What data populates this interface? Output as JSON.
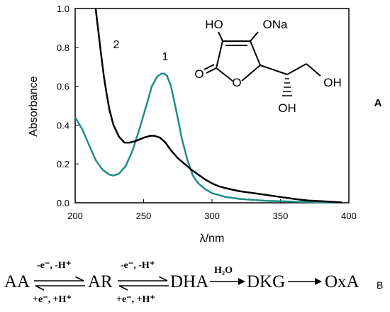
{
  "chart_data": {
    "type": "line",
    "xlabel": "λ/nm",
    "ylabel": "Absorbance",
    "xlim": [
      200,
      400
    ],
    "ylim": [
      0.0,
      1.0
    ],
    "x_ticks": [
      "200",
      "250",
      "300",
      "350",
      "400"
    ],
    "y_ticks": [
      "0.0",
      "0.2",
      "0.4",
      "0.6",
      "0.8",
      "1.0"
    ],
    "panel_label": "A",
    "series": [
      {
        "name": "1",
        "color": "#1e8c88",
        "x": [
          200,
          205,
          210,
          215,
          220,
          225,
          228,
          232,
          237,
          242,
          247,
          252,
          256,
          260,
          263,
          265,
          267,
          270,
          274,
          278,
          282,
          286,
          290,
          295,
          300,
          310,
          320,
          330,
          340,
          350,
          360,
          370,
          380,
          390
        ],
        "y": [
          0.44,
          0.38,
          0.3,
          0.22,
          0.17,
          0.145,
          0.14,
          0.15,
          0.19,
          0.27,
          0.38,
          0.5,
          0.6,
          0.65,
          0.665,
          0.665,
          0.655,
          0.6,
          0.47,
          0.33,
          0.22,
          0.14,
          0.1,
          0.07,
          0.05,
          0.03,
          0.02,
          0.015,
          0.01,
          0.008,
          0.006,
          0.004,
          0.002,
          0.001
        ]
      },
      {
        "name": "2",
        "color": "#000000",
        "x": [
          215,
          217,
          219,
          221,
          223,
          225,
          228,
          232,
          236,
          240,
          245,
          250,
          255,
          258,
          262,
          266,
          270,
          275,
          280,
          285,
          290,
          295,
          300,
          305,
          310,
          320,
          330,
          340,
          350,
          360,
          370,
          380,
          390,
          395
        ],
        "y": [
          1.0,
          0.88,
          0.76,
          0.65,
          0.56,
          0.48,
          0.4,
          0.34,
          0.31,
          0.31,
          0.32,
          0.335,
          0.345,
          0.345,
          0.335,
          0.31,
          0.27,
          0.23,
          0.2,
          0.17,
          0.145,
          0.12,
          0.1,
          0.085,
          0.075,
          0.06,
          0.05,
          0.04,
          0.03,
          0.02,
          0.012,
          0.008,
          0.004,
          0.002
        ]
      }
    ]
  },
  "molecule": {
    "labels": [
      "HO",
      "ONa",
      "O",
      "O",
      "OH",
      "OH"
    ]
  },
  "scheme": {
    "species": [
      "AA",
      "AR",
      "DHA",
      "DKG",
      "OxA"
    ],
    "step1_top": "-e⁻, -H⁺",
    "step1_bottom": "+e⁻, +H⁺",
    "step2_top": "-e⁻, -H⁺",
    "step2_bottom": "+e⁻, +H⁺",
    "step3_top": "H₂O",
    "panel_label": "B"
  }
}
